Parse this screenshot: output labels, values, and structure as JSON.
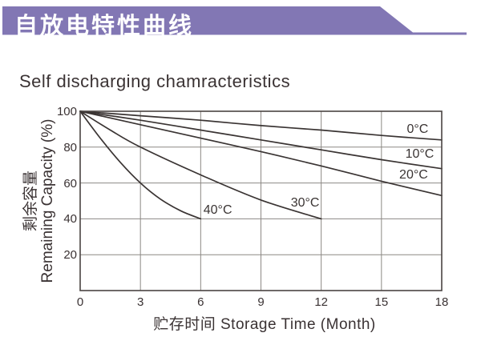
{
  "header": {
    "banner_title": "自放电特性曲线",
    "banner_color": "#8277b4"
  },
  "subtitle": "Self discharging chamracteristics",
  "chart_data": {
    "type": "line",
    "title": "Self discharging chamracteristics",
    "xlabel": "贮存时间 Storage Time (Month)",
    "ylabel_line1": "剩余容量",
    "ylabel_line2": "Remaining Capacity (%)",
    "xlim": [
      0,
      18
    ],
    "ylim": [
      0,
      100
    ],
    "x_ticks": [
      0,
      3,
      6,
      9,
      12,
      15,
      18
    ],
    "y_ticks": [
      20,
      40,
      60,
      80,
      100
    ],
    "grid": true,
    "legend_position": "labels-on-plot",
    "colors": {
      "curve": "#3a3433",
      "grid": "#8c8884",
      "axis": "#4a4442",
      "text": "#3a3233"
    },
    "series": [
      {
        "name": "0°C",
        "label": "0°C",
        "label_pos": {
          "x": 16.8,
          "y": 89.7
        },
        "points": [
          [
            0,
            100
          ],
          [
            3,
            97.5
          ],
          [
            6,
            95
          ],
          [
            9,
            92
          ],
          [
            12,
            89.5
          ],
          [
            15,
            86.5
          ],
          [
            18,
            84
          ]
        ]
      },
      {
        "name": "10°C",
        "label": "10°C",
        "label_pos": {
          "x": 16.9,
          "y": 76
        },
        "points": [
          [
            0,
            100
          ],
          [
            3,
            95
          ],
          [
            6,
            89.5
          ],
          [
            9,
            84
          ],
          [
            12,
            78.5
          ],
          [
            15,
            73
          ],
          [
            18,
            68
          ]
        ]
      },
      {
        "name": "20°C",
        "label": "20°C",
        "label_pos": {
          "x": 16.6,
          "y": 64.5
        },
        "points": [
          [
            0,
            100
          ],
          [
            3,
            92.5
          ],
          [
            6,
            85
          ],
          [
            9,
            77.5
          ],
          [
            12,
            69.5
          ],
          [
            15,
            61
          ],
          [
            18,
            53
          ]
        ]
      },
      {
        "name": "30°C",
        "label": "30°C",
        "label_pos": {
          "x": 11.2,
          "y": 48.5
        },
        "points": [
          [
            0,
            100
          ],
          [
            1.5,
            89.5
          ],
          [
            3,
            80
          ],
          [
            6,
            64.5
          ],
          [
            9,
            50.5
          ],
          [
            12,
            40
          ]
        ]
      },
      {
        "name": "40°C",
        "label": "40°C",
        "label_pos": {
          "x": 6.85,
          "y": 44.5
        },
        "points": [
          [
            0,
            100
          ],
          [
            1,
            85
          ],
          [
            2,
            71.5
          ],
          [
            3,
            60
          ],
          [
            4,
            51
          ],
          [
            5,
            44.5
          ],
          [
            6,
            40
          ]
        ]
      }
    ]
  }
}
